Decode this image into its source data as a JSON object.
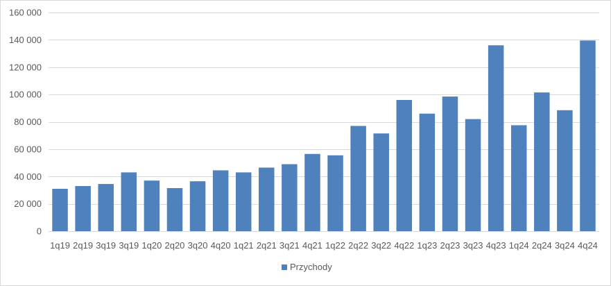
{
  "chart_data": {
    "type": "bar",
    "title": "",
    "xlabel": "",
    "ylabel": "",
    "categories": [
      "1q19",
      "2q19",
      "3q19",
      "3q19",
      "1q20",
      "2q20",
      "3q20",
      "4q20",
      "1q21",
      "2q21",
      "3q21",
      "4q21",
      "1q22",
      "2q22",
      "3q22",
      "4q22",
      "1q23",
      "2q23",
      "3q23",
      "4q23",
      "1q24",
      "2q24",
      "3q24",
      "4q24"
    ],
    "series": [
      {
        "name": "Przychody",
        "values": [
          31000,
          33000,
          34500,
          43000,
          37000,
          31500,
          36500,
          44500,
          43000,
          46500,
          49000,
          56500,
          55500,
          77000,
          71500,
          96000,
          86000,
          98500,
          82000,
          136000,
          77500,
          101500,
          88500,
          139500
        ]
      }
    ],
    "ylim": [
      0,
      160000
    ],
    "yticks": [
      0,
      20000,
      40000,
      60000,
      80000,
      100000,
      120000,
      140000,
      160000
    ],
    "ytick_labels": [
      "0",
      "20 000",
      "40 000",
      "60 000",
      "80 000",
      "100 000",
      "120 000",
      "140 000",
      "160 000"
    ],
    "grid": true,
    "legend_position": "bottom",
    "colors": {
      "bar": "#4f81bd",
      "grid": "#d9d9d9",
      "text": "#595959",
      "border": "#d9d9d9"
    }
  }
}
